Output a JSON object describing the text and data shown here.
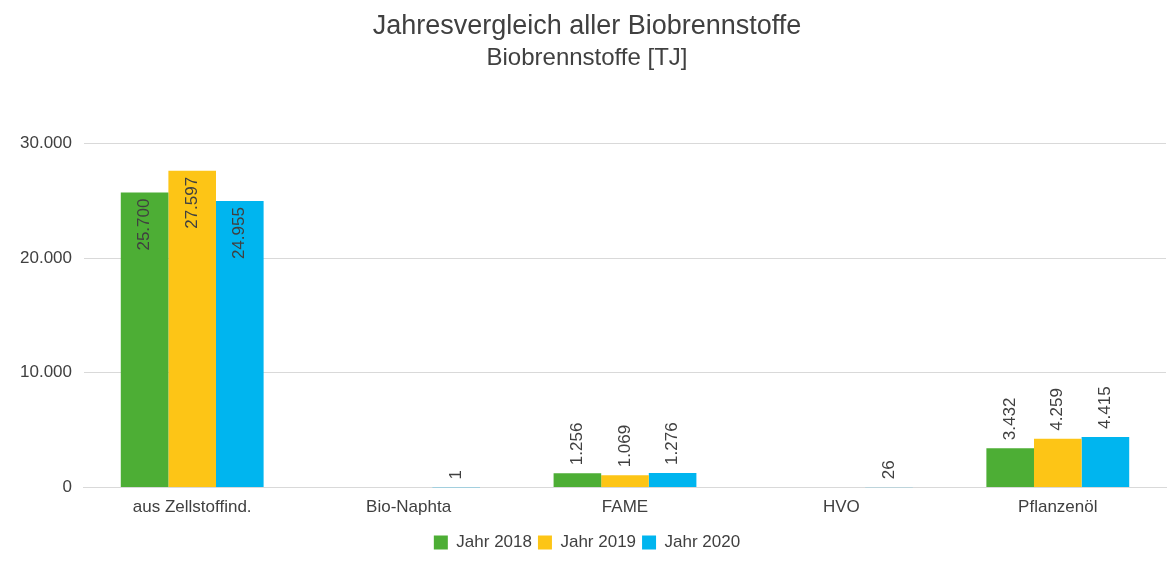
{
  "chart_data": {
    "type": "bar",
    "title": "Jahresvergleich aller Biobrennstoffe",
    "subtitle": "Biobrennstoffe [TJ]",
    "categories": [
      "aus Zellstoffind.",
      "Bio-Naphta",
      "FAME",
      "HVO",
      "Pflanzenöl"
    ],
    "series": [
      {
        "name": "Jahr 2018",
        "color": "#4dae35",
        "values": [
          25700,
          null,
          1256,
          null,
          3432
        ],
        "value_labels": [
          "25.700",
          null,
          "1.256",
          null,
          "3.432"
        ]
      },
      {
        "name": "Jahr 2019",
        "color": "#fdc516",
        "values": [
          27597,
          null,
          1069,
          null,
          4259
        ],
        "value_labels": [
          "27.597",
          null,
          "1.069",
          null,
          "4.259"
        ]
      },
      {
        "name": "Jahr 2020",
        "color": "#00b5ef",
        "values": [
          24955,
          1,
          1276,
          26,
          4415
        ],
        "value_labels": [
          "24.955",
          "1",
          "1.276",
          "26",
          "4.415"
        ]
      }
    ],
    "ylim": [
      0,
      30000
    ],
    "yticks": [
      0,
      {
        "value": 10000,
        "label": "10.000"
      },
      {
        "value": 20000,
        "label": "20.000"
      },
      {
        "value": 30000,
        "label": "30.000"
      }
    ],
    "grid": "y",
    "legend": "bottom"
  }
}
